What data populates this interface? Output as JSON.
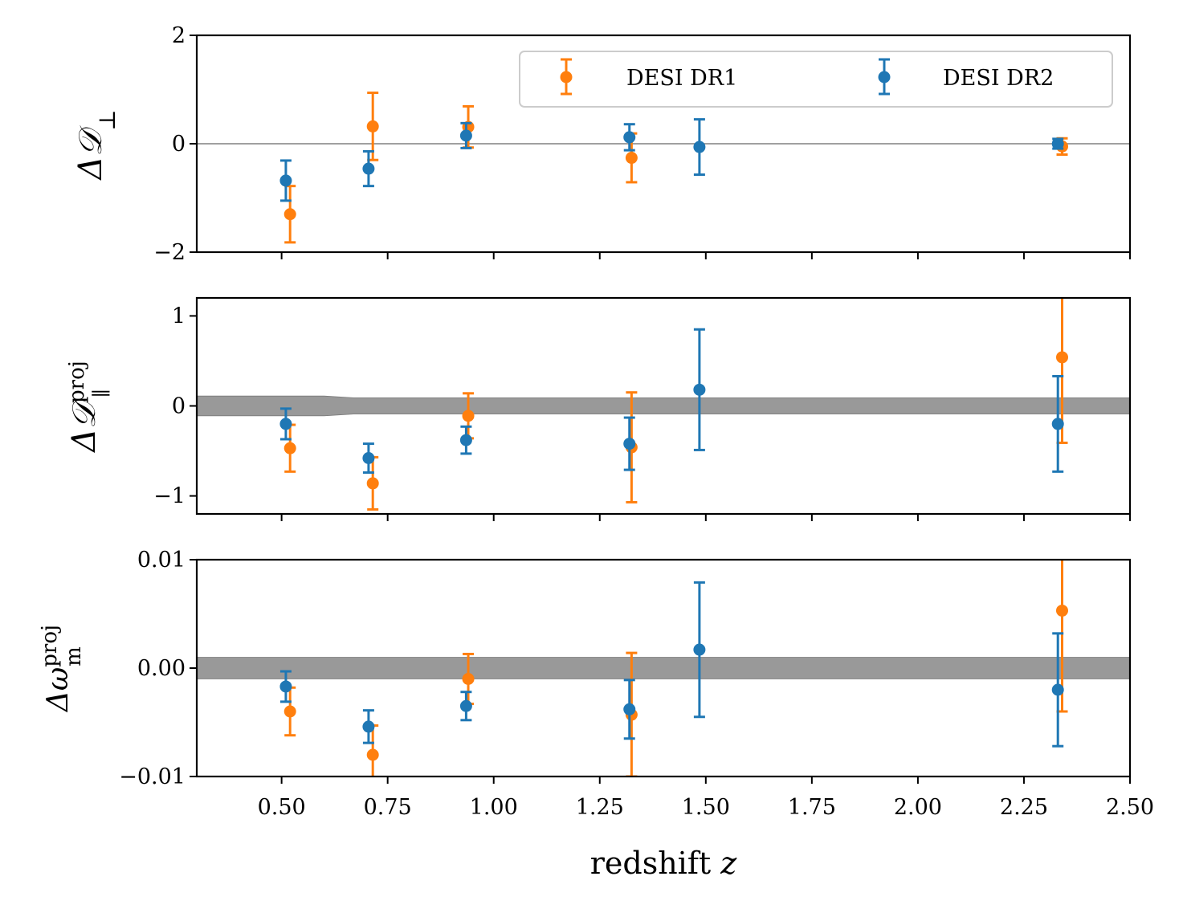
{
  "colors": {
    "dr1": "#ff7f0e",
    "dr2": "#1f77b4",
    "band": "#999999",
    "zero_line": "#808080"
  },
  "legend": {
    "dr1_label": "DESI DR1",
    "dr2_label": "DESI DR2",
    "placement": "top-right of top panel",
    "columns": 2
  },
  "xaxis": {
    "label": "redshift z",
    "range": [
      0.3,
      2.5
    ],
    "ticks": [
      0.5,
      0.75,
      1.0,
      1.25,
      1.5,
      1.75,
      2.0,
      2.25,
      2.5
    ],
    "tick_labels": [
      "0.50",
      "0.75",
      "1.00",
      "1.25",
      "1.50",
      "1.75",
      "2.00",
      "2.25",
      "2.50"
    ]
  },
  "chart_data": [
    {
      "type": "scatter",
      "ylabel": "ΔD⊥",
      "ylim": [
        -2,
        2
      ],
      "yticks": [
        -2,
        0,
        2
      ],
      "ytick_labels": [
        "−2",
        "0",
        "2"
      ],
      "reference_line": 0,
      "band": null,
      "series": [
        {
          "name": "DESI DR1",
          "x": [
            0.52,
            0.715,
            0.94,
            1.325,
            2.34
          ],
          "y": [
            -1.3,
            0.32,
            0.31,
            -0.26,
            -0.05
          ],
          "err": [
            0.52,
            0.62,
            0.38,
            0.45,
            0.15
          ]
        },
        {
          "name": "DESI DR2",
          "x": [
            0.51,
            0.705,
            0.935,
            1.32,
            1.485,
            2.33
          ],
          "y": [
            -0.68,
            -0.46,
            0.15,
            0.12,
            -0.06,
            0.0
          ],
          "err": [
            0.37,
            0.32,
            0.23,
            0.24,
            0.51,
            0.09
          ]
        }
      ]
    },
    {
      "type": "scatter",
      "ylabel": "ΔD∥ proj",
      "ylim": [
        -1.2,
        1.2
      ],
      "yticks": [
        -1,
        0,
        1
      ],
      "ytick_labels": [
        "−1",
        "0",
        "1"
      ],
      "reference_line": null,
      "band": {
        "x": [
          0.3,
          0.6,
          0.67,
          1.0,
          2.5
        ],
        "lower": [
          -0.11,
          -0.11,
          -0.09,
          -0.09,
          -0.09
        ],
        "upper": [
          0.11,
          0.11,
          0.09,
          0.09,
          0.09
        ]
      },
      "series": [
        {
          "name": "DESI DR1",
          "x": [
            0.52,
            0.715,
            0.94,
            1.325,
            2.34
          ],
          "y": [
            -0.47,
            -0.86,
            -0.11,
            -0.46,
            0.54
          ],
          "err": [
            0.26,
            0.29,
            0.25,
            0.61,
            0.95
          ]
        },
        {
          "name": "DESI DR2",
          "x": [
            0.51,
            0.705,
            0.935,
            1.32,
            1.485,
            2.33
          ],
          "y": [
            -0.2,
            -0.58,
            -0.38,
            -0.42,
            0.18,
            -0.2
          ],
          "err": [
            0.17,
            0.16,
            0.15,
            0.29,
            0.67,
            0.53
          ]
        }
      ]
    },
    {
      "type": "scatter",
      "ylabel": "Δω proj m",
      "ylim": [
        -0.01,
        0.01
      ],
      "yticks": [
        -0.01,
        0.0,
        0.01
      ],
      "ytick_labels": [
        "−0.01",
        "0.00",
        "0.01"
      ],
      "reference_line": null,
      "band": {
        "x": [
          0.3,
          2.5
        ],
        "lower": [
          -0.001,
          -0.001
        ],
        "upper": [
          0.001,
          0.001
        ]
      },
      "series": [
        {
          "name": "DESI DR1",
          "x": [
            0.52,
            0.715,
            0.94,
            1.325,
            2.34
          ],
          "y": [
            -0.004,
            -0.008,
            -0.001,
            -0.0043,
            0.0053
          ],
          "err": [
            0.0022,
            0.0027,
            0.0023,
            0.0057,
            0.0093
          ]
        },
        {
          "name": "DESI DR2",
          "x": [
            0.51,
            0.705,
            0.935,
            1.32,
            1.485,
            2.33
          ],
          "y": [
            -0.0017,
            -0.0054,
            -0.0035,
            -0.0038,
            0.0017,
            -0.002
          ],
          "err": [
            0.0014,
            0.0015,
            0.0013,
            0.0027,
            0.0062,
            0.0052
          ]
        }
      ]
    }
  ]
}
